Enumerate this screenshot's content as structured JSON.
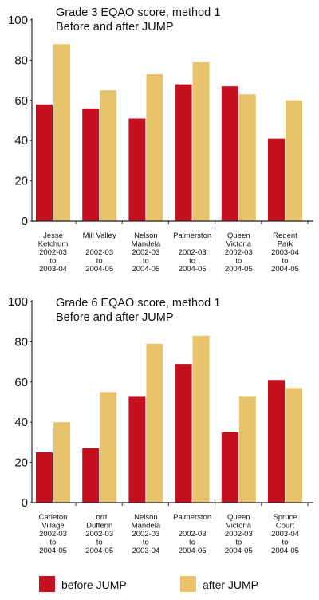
{
  "colors": {
    "before": "#c5101f",
    "after": "#e9c36c",
    "axis": "#222222"
  },
  "legend": {
    "before_label": "before JUMP",
    "after_label": "after JUMP"
  },
  "chart_data": [
    {
      "type": "bar",
      "title": [
        "Grade 3 EQAO score, method 1",
        "Before and after JUMP"
      ],
      "ylim": [
        0,
        100
      ],
      "yticks": [
        0,
        20,
        40,
        60,
        80,
        100
      ],
      "categories": [
        [
          "Jesse",
          "Ketchum",
          "2002-03",
          "to",
          "2003-04"
        ],
        [
          "Mill Valley",
          "",
          "2002-03",
          "to",
          "2004-05"
        ],
        [
          "Nelson",
          "Mandela",
          "2002-03",
          "to",
          "2004-05"
        ],
        [
          "Palmerston",
          "",
          "2002-03",
          "to",
          "2004-05"
        ],
        [
          "Queen",
          "Victoria",
          "2002-03",
          "to",
          "2004-05"
        ],
        [
          "Regent",
          "Park",
          "2003-04",
          "to",
          "2004-05"
        ]
      ],
      "series": [
        {
          "name": "before JUMP",
          "values": [
            58,
            56,
            51,
            68,
            67,
            41
          ]
        },
        {
          "name": "after JUMP",
          "values": [
            88,
            65,
            73,
            79,
            63,
            60
          ]
        }
      ]
    },
    {
      "type": "bar",
      "title": [
        "Grade 6 EQAO score, method 1",
        "Before and after JUMP"
      ],
      "ylim": [
        0,
        100
      ],
      "yticks": [
        0,
        20,
        40,
        60,
        80,
        100
      ],
      "categories": [
        [
          "Carleton",
          "Village",
          "2002-03",
          "to",
          "2004-05"
        ],
        [
          "Lord",
          "Dufferin",
          "2002-03",
          "to",
          "2004-05"
        ],
        [
          "Nelson",
          "Mandela",
          "2002-03",
          "to",
          "2003-04"
        ],
        [
          "Palmerston",
          "",
          "2002-03",
          "to",
          "2004-05"
        ],
        [
          "Queen",
          "Victoria",
          "2002-03",
          "to",
          "2004-05"
        ],
        [
          "Spruce",
          "Court",
          "2003-04",
          "to",
          "2004-05"
        ]
      ],
      "series": [
        {
          "name": "before JUMP",
          "values": [
            25,
            27,
            53,
            69,
            35,
            61
          ]
        },
        {
          "name": "after JUMP",
          "values": [
            40,
            55,
            79,
            83,
            53,
            57
          ]
        }
      ]
    }
  ]
}
